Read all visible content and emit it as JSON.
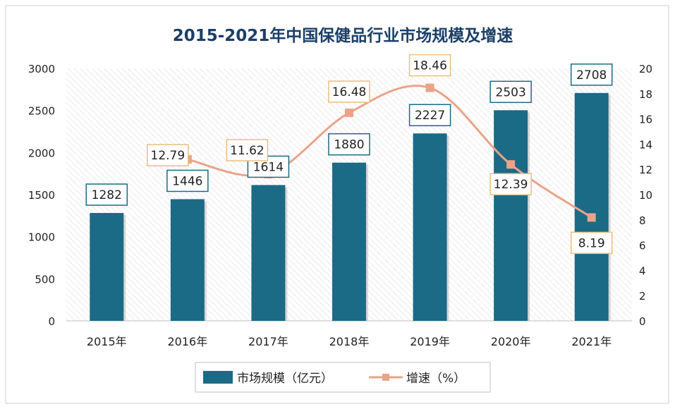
{
  "chart_data": {
    "type": "bar",
    "title": "2015-2021年中国保健品行业市场规模及增速",
    "categories": [
      "2015年",
      "2016年",
      "2017年",
      "2018年",
      "2019年",
      "2020年",
      "2021年"
    ],
    "series": [
      {
        "name": "市场规模（亿元）",
        "type": "bar",
        "axis": "left",
        "color": "#1b6a86",
        "values": [
          1282,
          1446,
          1614,
          1880,
          2227,
          2503,
          2708
        ]
      },
      {
        "name": "增速（%）",
        "type": "line",
        "axis": "right",
        "color": "#e8a488",
        "values": [
          null,
          12.79,
          11.62,
          16.48,
          18.46,
          12.39,
          8.19
        ]
      }
    ],
    "y_left": {
      "min": 0,
      "max": 3000,
      "ticks": [
        "0",
        "500",
        "1000",
        "1500",
        "2000",
        "2500",
        "3000"
      ]
    },
    "y_right": {
      "min": 0,
      "max": 20,
      "ticks": [
        "0",
        "2",
        "4",
        "6",
        "8",
        "10",
        "12",
        "14",
        "16",
        "18",
        "20"
      ]
    },
    "bar_labels": [
      "1282",
      "1446",
      "1614",
      "1880",
      "2227",
      "2503",
      "2708"
    ],
    "line_labels": [
      "",
      "12.79",
      "11.62",
      "16.48",
      "18.46",
      "12.39",
      "8.19"
    ],
    "legend_position": "bottom",
    "grid": false
  },
  "colors": {
    "title": "#1b3f66",
    "bar": "#1b6a86",
    "line": "#e8a488",
    "bar_label_border": "#1b6a86",
    "line_label_border": "#e8c07a"
  }
}
